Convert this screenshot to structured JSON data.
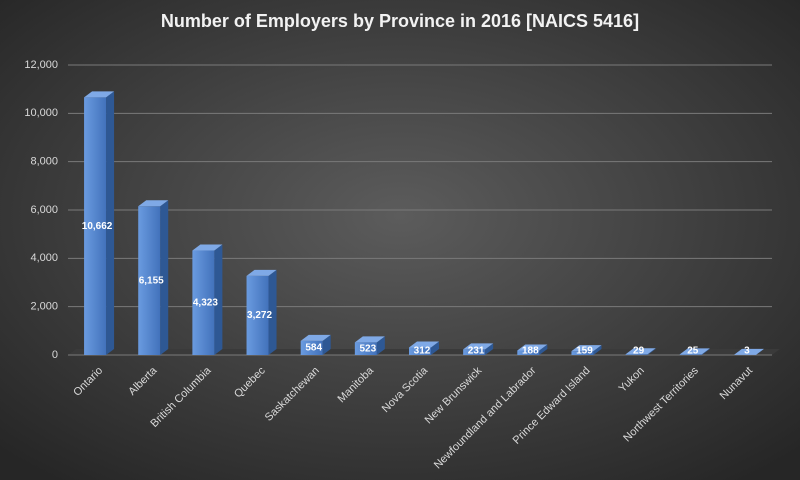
{
  "chart_data": {
    "type": "bar",
    "title": "Number of Employers by Province in 2016 [NAICS 5416]",
    "categories": [
      "Ontario",
      "Alberta",
      "British Columbia",
      "Quebec",
      "Saskatchewan",
      "Manitoba",
      "Nova Scotia",
      "New Brunswick",
      "Newfoundland and Labrador",
      "Prince Edward Island",
      "Yukon",
      "Northwest Territories",
      "Nunavut"
    ],
    "values": [
      10662,
      6155,
      4323,
      3272,
      584,
      523,
      312,
      231,
      188,
      159,
      29,
      25,
      3
    ],
    "value_labels": [
      "10,662",
      "6,155",
      "4,323",
      "3,272",
      "584",
      "523",
      "312",
      "231",
      "188",
      "159",
      "29",
      "25",
      "3"
    ],
    "color": "#4f81c9",
    "ylim": [
      0,
      12000
    ],
    "yticks": [
      0,
      {
        "value": 2000,
        "label": "2,000"
      },
      {
        "value": 4000,
        "label": "4,000"
      },
      {
        "value": 6000,
        "label": "6,000"
      },
      {
        "value": 8000,
        "label": "8,000"
      },
      {
        "value": 10000,
        "label": "10,000"
      },
      {
        "value": 12000,
        "label": "12,000"
      }
    ],
    "grid": true
  }
}
